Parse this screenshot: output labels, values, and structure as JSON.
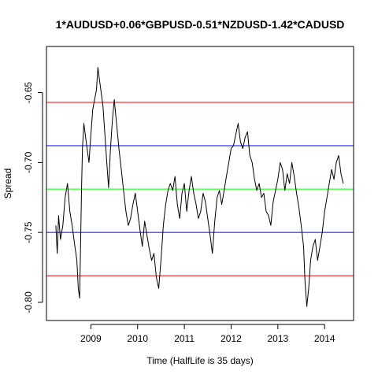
{
  "chart_data": {
    "type": "line",
    "title": "1*AUDUSD+0.06*GBPUSD-0.51*NZDUSD-1.42*CADUSD",
    "xlabel": "Time  (HalfLife is 35 days)",
    "ylabel": "Spread",
    "xlim": [
      2008.05,
      2014.62
    ],
    "ylim": [
      -0.813,
      -0.617
    ],
    "x_ticks": [
      2009,
      2010,
      2011,
      2012,
      2013,
      2014
    ],
    "x_tick_labels": [
      "2009",
      "2010",
      "2011",
      "2012",
      "2013",
      "2014"
    ],
    "y_ticks": [
      -0.65,
      -0.7,
      -0.75,
      -0.8
    ],
    "y_tick_labels": [
      "-0.65",
      "-0.70",
      "-0.75",
      "-0.80"
    ],
    "grid": false,
    "series": [
      {
        "color": "#000000",
        "x": [
          2008.25,
          2008.28,
          2008.31,
          2008.35,
          2008.4,
          2008.45,
          2008.5,
          2008.55,
          2008.6,
          2008.65,
          2008.7,
          2008.73,
          2008.76,
          2008.78,
          2008.8,
          2008.82,
          2008.85,
          2008.88,
          2008.92,
          2008.96,
          2009.0,
          2009.04,
          2009.08,
          2009.12,
          2009.15,
          2009.18,
          2009.22,
          2009.26,
          2009.3,
          2009.34,
          2009.38,
          2009.42,
          2009.46,
          2009.5,
          2009.55,
          2009.6,
          2009.65,
          2009.7,
          2009.75,
          2009.8,
          2009.85,
          2009.9,
          2009.95,
          2010.0,
          2010.05,
          2010.1,
          2010.15,
          2010.2,
          2010.25,
          2010.3,
          2010.35,
          2010.4,
          2010.45,
          2010.5,
          2010.55,
          2010.6,
          2010.65,
          2010.7,
          2010.75,
          2010.8,
          2010.85,
          2010.9,
          2010.95,
          2011.0,
          2011.05,
          2011.1,
          2011.15,
          2011.2,
          2011.25,
          2011.3,
          2011.35,
          2011.4,
          2011.45,
          2011.5,
          2011.55,
          2011.6,
          2011.65,
          2011.7,
          2011.75,
          2011.8,
          2011.85,
          2011.9,
          2011.95,
          2012.0,
          2012.05,
          2012.1,
          2012.15,
          2012.2,
          2012.25,
          2012.3,
          2012.35,
          2012.4,
          2012.45,
          2012.5,
          2012.55,
          2012.6,
          2012.65,
          2012.7,
          2012.75,
          2012.8,
          2012.85,
          2012.9,
          2012.95,
          2013.0,
          2013.05,
          2013.1,
          2013.15,
          2013.2,
          2013.25,
          2013.3,
          2013.35,
          2013.4,
          2013.45,
          2013.5,
          2013.55,
          2013.58,
          2013.62,
          2013.66,
          2013.7,
          2013.75,
          2013.8,
          2013.85,
          2013.9,
          2013.95,
          2014.0,
          2014.05,
          2014.1,
          2014.15,
          2014.2,
          2014.25,
          2014.3,
          2014.35,
          2014.4
        ],
        "y": [
          -0.745,
          -0.765,
          -0.738,
          -0.755,
          -0.745,
          -0.725,
          -0.715,
          -0.735,
          -0.745,
          -0.758,
          -0.77,
          -0.79,
          -0.797,
          -0.76,
          -0.72,
          -0.69,
          -0.672,
          -0.68,
          -0.69,
          -0.7,
          -0.68,
          -0.662,
          -0.655,
          -0.648,
          -0.632,
          -0.64,
          -0.65,
          -0.66,
          -0.68,
          -0.7,
          -0.718,
          -0.69,
          -0.67,
          -0.655,
          -0.672,
          -0.69,
          -0.705,
          -0.72,
          -0.735,
          -0.745,
          -0.74,
          -0.73,
          -0.722,
          -0.735,
          -0.748,
          -0.76,
          -0.742,
          -0.752,
          -0.762,
          -0.77,
          -0.765,
          -0.782,
          -0.79,
          -0.77,
          -0.745,
          -0.73,
          -0.72,
          -0.715,
          -0.72,
          -0.71,
          -0.73,
          -0.74,
          -0.722,
          -0.715,
          -0.735,
          -0.72,
          -0.71,
          -0.722,
          -0.73,
          -0.74,
          -0.735,
          -0.722,
          -0.728,
          -0.74,
          -0.752,
          -0.765,
          -0.742,
          -0.725,
          -0.72,
          -0.73,
          -0.72,
          -0.71,
          -0.7,
          -0.69,
          -0.688,
          -0.68,
          -0.672,
          -0.685,
          -0.69,
          -0.682,
          -0.678,
          -0.695,
          -0.7,
          -0.712,
          -0.72,
          -0.715,
          -0.725,
          -0.722,
          -0.735,
          -0.738,
          -0.745,
          -0.728,
          -0.72,
          -0.712,
          -0.7,
          -0.705,
          -0.72,
          -0.708,
          -0.715,
          -0.7,
          -0.71,
          -0.722,
          -0.732,
          -0.745,
          -0.76,
          -0.785,
          -0.803,
          -0.79,
          -0.77,
          -0.76,
          -0.755,
          -0.77,
          -0.76,
          -0.75,
          -0.735,
          -0.725,
          -0.715,
          -0.705,
          -0.712,
          -0.7,
          -0.695,
          -0.708,
          -0.715
        ]
      }
    ],
    "hlines": [
      {
        "y": -0.657,
        "color": "#ff0000"
      },
      {
        "y": -0.688,
        "color": "#0000ff"
      },
      {
        "y": -0.719,
        "color": "#00ff00"
      },
      {
        "y": -0.75,
        "color": "#0000ff"
      },
      {
        "y": -0.781,
        "color": "#ff0000"
      }
    ]
  }
}
